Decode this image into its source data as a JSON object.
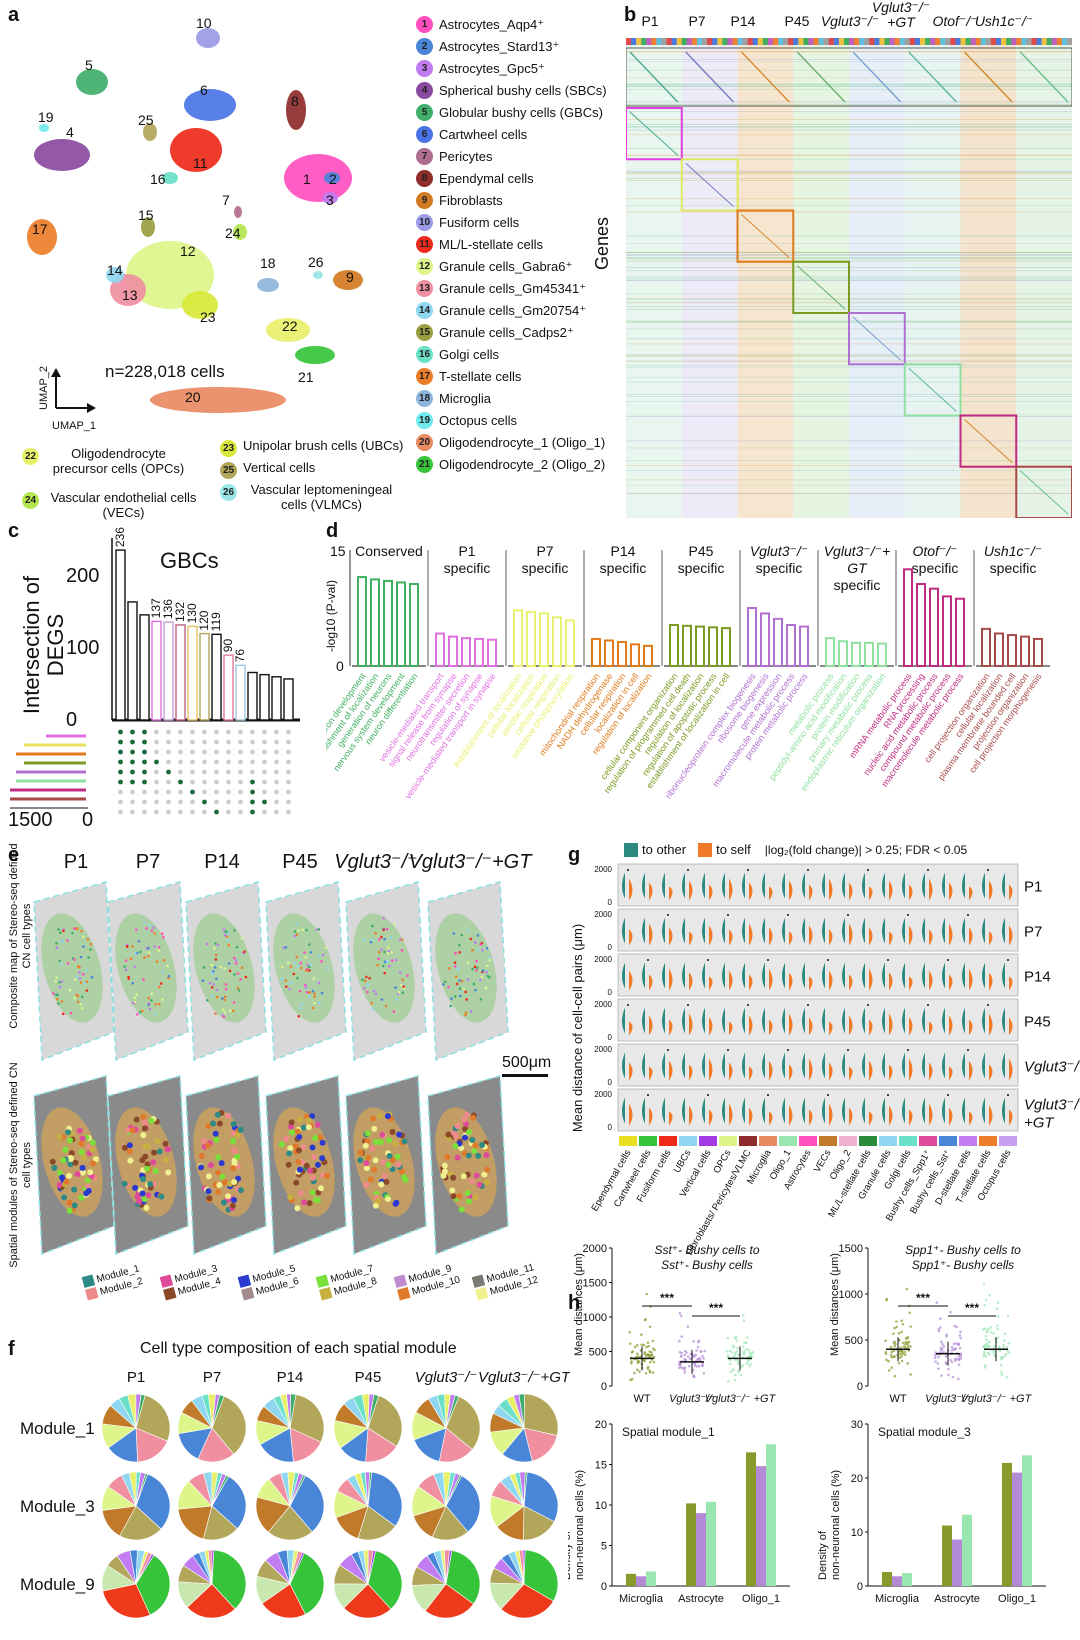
{
  "panels": {
    "a": "a",
    "b": "b",
    "c": "c",
    "d": "d",
    "e": "e",
    "f": "f",
    "g": "g",
    "h": "h"
  },
  "panel_a": {
    "cluster_numbers": [
      "1",
      "2",
      "3",
      "4",
      "5",
      "6",
      "7",
      "8",
      "9",
      "10",
      "11",
      "12",
      "13",
      "14",
      "15",
      "16",
      "17",
      "18",
      "19",
      "20",
      "21",
      "22",
      "23",
      "24",
      "25",
      "26"
    ],
    "cell_count": "n=228,018 cells",
    "axis_y": "UMAP_2",
    "axis_x": "UMAP_1",
    "legend": [
      {
        "n": "1",
        "label": "Astrocytes_Aqp4⁺",
        "color": "#ff4fbf"
      },
      {
        "n": "2",
        "label": "Astrocytes_Stard13⁺",
        "color": "#4a86d8"
      },
      {
        "n": "3",
        "label": "Astrocytes_Gpc5⁺",
        "color": "#c07cf0"
      },
      {
        "n": "4",
        "label": "Spherical bushy cells (SBCs)",
        "color": "#8a4aa0"
      },
      {
        "n": "5",
        "label": "Globular bushy cells (GBCs)",
        "color": "#3fae6a"
      },
      {
        "n": "6",
        "label": "Cartwheel cells",
        "color": "#4a74e6"
      },
      {
        "n": "7",
        "label": "Pericytes",
        "color": "#b06e8e"
      },
      {
        "n": "8",
        "label": "Ependymal cells",
        "color": "#8e2b2b"
      },
      {
        "n": "9",
        "label": "Fibroblasts",
        "color": "#d27a22"
      },
      {
        "n": "10",
        "label": "Fusiform cells",
        "color": "#9a9ae6"
      },
      {
        "n": "11",
        "label": "ML/L-stellate cells",
        "color": "#ee2a1a"
      },
      {
        "n": "12",
        "label": "Granule cells_Gabra6⁺",
        "color": "#ddf58a"
      },
      {
        "n": "13",
        "label": "Granule cells_Gm45341⁺",
        "color": "#ef8fa0"
      },
      {
        "n": "14",
        "label": "Granule cells_Gm20754⁺",
        "color": "#8fd6f0"
      },
      {
        "n": "15",
        "label": "Granule cells_Cadps2⁺",
        "color": "#9aa040"
      },
      {
        "n": "16",
        "label": "Golgi cells",
        "color": "#6ae0c8"
      },
      {
        "n": "17",
        "label": "T-stellate cells",
        "color": "#ec7e2a"
      },
      {
        "n": "18",
        "label": "Microglia",
        "color": "#8eb4dc"
      },
      {
        "n": "19",
        "label": "Octopus cells",
        "color": "#6fe8ee"
      },
      {
        "n": "20",
        "label": "Oligodendrocyte_1 (Oligo_1)",
        "color": "#e88a62"
      },
      {
        "n": "21",
        "label": "Oligodendrocyte_2 (Oligo_2)",
        "color": "#36c43a"
      }
    ],
    "legend_bottom": [
      {
        "n": "22",
        "label": "Oligodendrocyte precursor cells (OPCs)",
        "color": "#e8f06a"
      },
      {
        "n": "23",
        "label": "Unipolar brush cells (UBCs)",
        "color": "#d8e83a"
      },
      {
        "n": "24",
        "label": "Vascular endothelial cells (VECs)",
        "color": "#b4e64e"
      },
      {
        "n": "25",
        "label": "Vertical cells",
        "color": "#b2a65a"
      },
      {
        "n": "26",
        "label": "Vascular leptomeningeal cells (VLMCs)",
        "color": "#9ae6e8"
      }
    ]
  },
  "panel_b": {
    "columns": [
      "P1",
      "P7",
      "P14",
      "P45",
      "Vglut3⁻/⁻",
      "Vglut3⁻/⁻ +GT",
      "Otof⁻/⁻",
      "Ush1c⁻/⁻"
    ],
    "ylabel": "Genes"
  },
  "panel_c": {
    "title": "GBCs",
    "ylabel_1": "Intersection of",
    "ylabel_2": "DEGS",
    "yticks": [
      "200",
      "100",
      "0"
    ],
    "bar_values": [
      236,
      164,
      146,
      137,
      136,
      132,
      130,
      120,
      119,
      90,
      76,
      66,
      63,
      60,
      57
    ],
    "bar_labels": [
      "236",
      "",
      "",
      "137",
      "136",
      "132",
      "130",
      "120",
      "119",
      "90",
      "76",
      "",
      "",
      "",
      ""
    ],
    "set_axis": [
      "1500",
      "0"
    ]
  },
  "panel_d": {
    "ylabel": "-log10 (P-val)",
    "yticks": [
      "15",
      "0"
    ],
    "groups": [
      {
        "title": "Conserved",
        "color": "#3fb060",
        "bars": [
          11.5,
          11.2,
          11.0,
          10.8,
          10.6
        ],
        "terms": [
          "neuron development",
          "establishment of localization",
          "generation of neurons",
          "nervous system development",
          "neuron differentiation"
        ]
      },
      {
        "title": "P1 specific",
        "color": "#e070e0",
        "bars": [
          4.2,
          3.8,
          3.6,
          3.5,
          3.4
        ],
        "terms": [
          "vesicle-mediated transport",
          "signal release from synapse",
          "neurotransmitter secretion",
          "regulation of synapse",
          "vesicle-mediated transport in synapse"
        ]
      },
      {
        "title": "P7 specific",
        "color": "#e8f070",
        "bars": [
          7.2,
          7.0,
          6.8,
          6.3,
          5.9
        ],
        "terms": [
          "establishment of localization",
          "cellular localization",
          "aerobic respiration",
          "cellular respiration",
          "oxidative phosphorylation"
        ]
      },
      {
        "title": "P14 specific",
        "color": "#e07a1a",
        "bars": [
          3.5,
          3.3,
          3.1,
          2.8,
          2.6
        ],
        "terms": [
          "mitochondrial respiration",
          "NADH dehydrogenase",
          "cellular respiration",
          "localization in cell",
          "regulation of localization"
        ]
      },
      {
        "title": "P45 specific",
        "color": "#7a9a20",
        "bars": [
          5.3,
          5.2,
          5.1,
          5.0,
          4.9
        ],
        "terms": [
          "cellular component organization",
          "regulation of programmed cell death",
          "regulation of localization",
          "regulation of apoptotic process",
          "establishment of localization in cell"
        ]
      },
      {
        "title": "Vglut3⁻/⁻ specific",
        "color": "#b070d0",
        "bars": [
          7.5,
          6.8,
          6.1,
          5.3,
          5.1
        ],
        "terms": [
          "ribonucleoprotein complex biogenesis",
          "ribosome biogenesis",
          "gene expression",
          "macromolecule metabolic process",
          "protein metabolic process"
        ]
      },
      {
        "title": "Vglut3⁻/⁻+ GT specific",
        "color": "#90e0a0",
        "bars": [
          3.6,
          3.2,
          3.0,
          3.0,
          2.9
        ],
        "terms": [
          "metabolic process",
          "peptidyl-amino acid modification",
          "protein modification",
          "primary metabolic process",
          "endoplasmic reticulum organization"
        ]
      },
      {
        "title": "Otof⁻/⁻ specific",
        "color": "#c02a80",
        "bars": [
          12.5,
          10.6,
          10.0,
          9.0,
          8.7
        ],
        "terms": [
          "mRNA metabolic process",
          "RNA processing",
          "nucleic acid metabolic process",
          "compound metabolic process",
          "macromolecule metabolic process"
        ]
      },
      {
        "title": "Ush1c⁻/⁻ specific",
        "color": "#a84a4a",
        "bars": [
          4.8,
          4.2,
          4.0,
          3.8,
          3.5
        ],
        "terms": [
          "cell projection organization",
          "cellular localization",
          "plasma membrane bounded cell",
          "projection organization",
          "cell projection morphogenesis"
        ]
      }
    ]
  },
  "panel_e": {
    "columns": [
      "P1",
      "P7",
      "P14",
      "P45",
      "Vglut3⁻/⁻",
      "Vglut3⁻/⁻+GT"
    ],
    "row1_label": "Composite map of Stereo-seq defined CN cell types",
    "row2_label": "Spatial modules of Stereo-seq defined CN cell types",
    "scale": "500μm",
    "modules": [
      {
        "a": "Module_1",
        "b": "Module_2",
        "ca": "#2e8a84",
        "cb": "#ee8a8a"
      },
      {
        "a": "Module_3",
        "b": "Module_4",
        "ca": "#e04a9a",
        "cb": "#8a4a2a"
      },
      {
        "a": "Module_5",
        "b": "Module_6",
        "ca": "#2a3ad0",
        "cb": "#a48a8a"
      },
      {
        "a": "Module_7",
        "b": "Module_8",
        "ca": "#7ae03a",
        "cb": "#c8b040"
      },
      {
        "a": "Module_9",
        "b": "Module_10",
        "ca": "#c08ad0",
        "cb": "#e07a2a"
      },
      {
        "a": "Module_11",
        "b": "Module_12",
        "ca": "#7a7a72",
        "cb": "#f0f090"
      }
    ]
  },
  "panel_f": {
    "title": "Cell type composition of each spatial module",
    "columns": [
      "P1",
      "P7",
      "P14",
      "P45",
      "Vglut3⁻/⁻",
      "Vglut3⁻/⁻+GT"
    ],
    "rows": [
      "Module_1",
      "Module_3",
      "Module_9"
    ]
  },
  "panel_g": {
    "legend_other": "to other",
    "legend_self": "to self",
    "legend_note": "|log₂(fold change)| > 0.25; FDR < 0.05",
    "color_other": "#2a8a80",
    "color_self": "#ee7a2a",
    "ylabel": "Mean distance of cell-cell pairs (μm)",
    "yticks": [
      "2000",
      "0"
    ],
    "rows": [
      "P1",
      "P7",
      "P14",
      "P45",
      "Vglut3⁻/⁻",
      "Vglut3⁻/⁻ +GT"
    ],
    "cell_types": [
      "Ependymal cells",
      "Cartwheel cells",
      "Fusiform cells",
      "UBCs",
      "Vertical cells",
      "OPCs",
      "Fibroblasts/ Pericytes/VLMC",
      "Microglia",
      "Oligo_1",
      "Astrocytes",
      "VECs",
      "Oligo_2",
      "ML/L-stellate cells",
      "Granule cells",
      "Golgi cells",
      "Bushy cells_Spp1⁺",
      "Bushy cells_Sst⁺",
      "D-stellate cells",
      "T-stellate cells",
      "Octopus cells"
    ]
  },
  "panel_h": {
    "left_title": "Sst⁺- Bushy cells to Sst⁺- Bushy cells",
    "right_title": "Spp1⁺- Bushy cells to Spp1⁺- Bushy cells",
    "ylabel_top": "Mean distances (μm)",
    "left_yticks": [
      "2000",
      "1500",
      "1000",
      "500",
      "0"
    ],
    "right_yticks": [
      "1500",
      "1000",
      "500",
      "0"
    ],
    "groups": [
      "WT",
      "Vglut3⁻/⁻",
      "Vglut3⁻/⁻ +GT"
    ],
    "sig": "***",
    "ylabel_bottom": "Density of non-neuronal cells (%)",
    "bottom_left_title": "Spatial module_1",
    "bottom_right_title": "Spatial module_3",
    "bottom_left_yticks": [
      "20",
      "15",
      "10",
      "5",
      "0"
    ],
    "bottom_right_yticks": [
      "30",
      "20",
      "10",
      "0"
    ],
    "categories": [
      "Microglia",
      "Astrocyte",
      "Oligo_1"
    ],
    "bar_colors": [
      "#8a9a2a",
      "#b28ad6",
      "#9ae6b0"
    ],
    "module1_values": [
      [
        1.5,
        1.2,
        1.8
      ],
      [
        10.2,
        9.0,
        10.4
      ],
      [
        16.5,
        14.8,
        17.5
      ]
    ],
    "module3_values": [
      [
        2.6,
        1.8,
        2.4
      ],
      [
        11.2,
        8.6,
        13.2
      ],
      [
        22.8,
        21.0,
        24.2
      ]
    ]
  }
}
